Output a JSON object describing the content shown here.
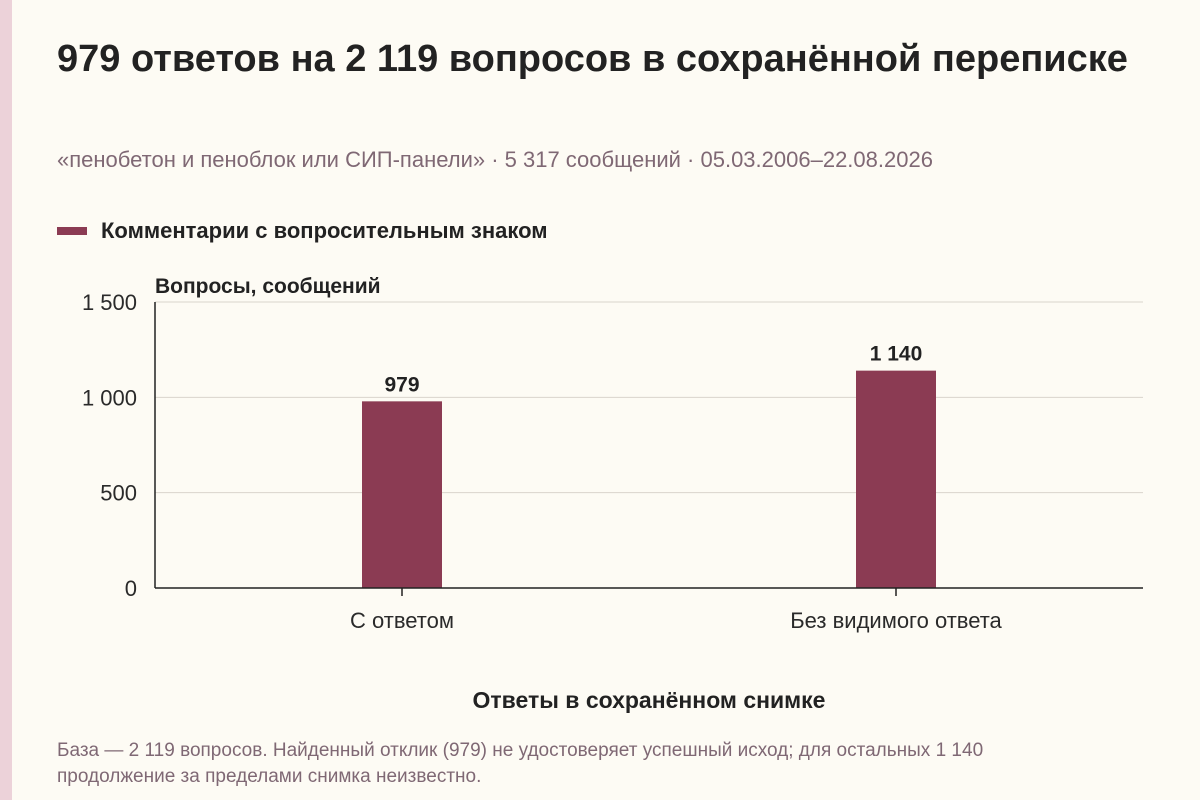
{
  "header": {
    "title": "979 ответов на 2 119 вопросов в сохранённой переписке",
    "subtitle": "«пенобетон и пеноблок или СИП-панели» · 5 317 сообщений · 05.03.2006–22.08.2026"
  },
  "legend": {
    "label": "Комментарии с вопросительным знаком"
  },
  "footnote": "База — 2 119 вопросов. Найденный отклик (979) не удостоверяет успешный исход; для остальных 1 140 продолжение за пределами снимка неизвестно.",
  "colors": {
    "bar": "#8b3b53",
    "side_strip": "#ecd2d9"
  },
  "chart_data": {
    "type": "bar",
    "categories": [
      "С ответом",
      "Без видимого ответа"
    ],
    "series": [
      {
        "name": "Комментарии с вопросительным знаком",
        "values": [
          979,
          1140
        ],
        "value_labels": [
          "979",
          "1 140"
        ]
      }
    ],
    "xlabel": "Ответы в сохранённом снимке",
    "ylabel": "Вопросы, сообщений",
    "ylim": [
      0,
      1500
    ],
    "yticks": [
      0,
      500,
      1000,
      1500
    ],
    "ytick_labels": [
      "0",
      "500",
      "1 000",
      "1 500"
    ],
    "grid": true,
    "legend_position": "top-left"
  }
}
